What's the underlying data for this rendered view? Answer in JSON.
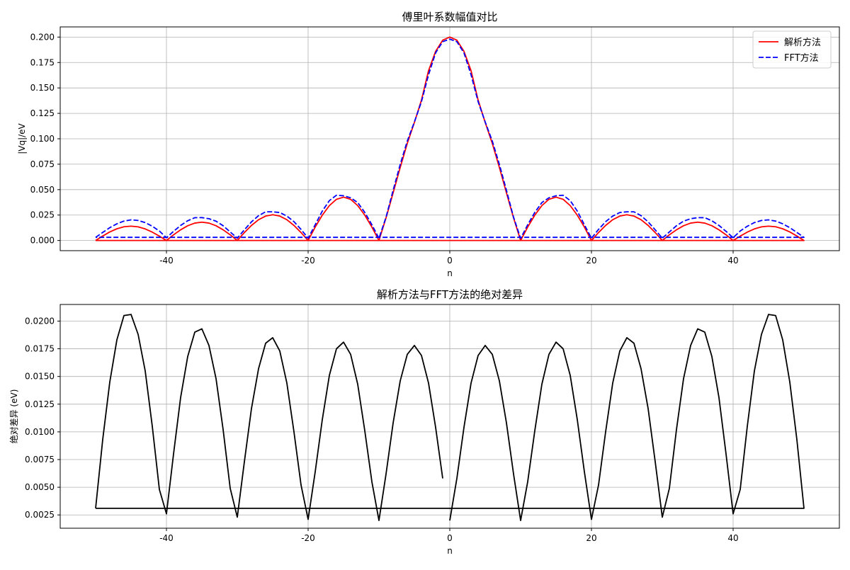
{
  "chart_data": [
    {
      "type": "line",
      "title": "傅里叶系数幅值对比",
      "xlabel": "n",
      "ylabel": "|Vq|/eV",
      "xlim": [
        -55,
        55
      ],
      "ylim": [
        -0.01,
        0.21
      ],
      "xticks": [
        -40,
        -20,
        0,
        20,
        40
      ],
      "yticks": [
        0.0,
        0.025,
        0.05,
        0.075,
        0.1,
        0.125,
        0.15,
        0.175,
        0.2
      ],
      "ytick_labels": [
        "0.000",
        "0.025",
        "0.050",
        "0.075",
        "0.100",
        "0.125",
        "0.150",
        "0.175",
        "0.200"
      ],
      "grid": true,
      "legend_position": "top-right",
      "series": [
        {
          "name": "解析方法",
          "color": "#ff0000",
          "style": "solid",
          "x": [
            -50,
            -49,
            -48,
            -47,
            -46,
            -45,
            -44,
            -43,
            -42,
            -41,
            -40,
            -39,
            -38,
            -37,
            -36,
            -35,
            -34,
            -33,
            -32,
            -31,
            -30,
            -29,
            -28,
            -27,
            -26,
            -25,
            -24,
            -23,
            -22,
            -21,
            -20,
            -19,
            -18,
            -17,
            -16,
            -15,
            -14,
            -13,
            -12,
            -11,
            -10,
            -9,
            -8,
            -7,
            -6,
            -5,
            -4,
            -3,
            -2,
            -1,
            0,
            1,
            2,
            3,
            4,
            5,
            6,
            7,
            8,
            9,
            10,
            11,
            12,
            13,
            14,
            15,
            16,
            17,
            18,
            19,
            20,
            21,
            22,
            23,
            24,
            25,
            26,
            27,
            28,
            29,
            30,
            31,
            32,
            33,
            34,
            35,
            36,
            37,
            38,
            39,
            40,
            41,
            42,
            43,
            44,
            45,
            46,
            47,
            48,
            49,
            50,
            50,
            -50
          ],
          "y": [
            0.0,
            0.0044,
            0.0084,
            0.0115,
            0.0135,
            0.0141,
            0.0134,
            0.0114,
            0.0082,
            0.0043,
            0.0,
            0.0056,
            0.0105,
            0.0145,
            0.0171,
            0.018,
            0.0171,
            0.0145,
            0.0105,
            0.0056,
            0.0,
            0.0078,
            0.0148,
            0.0204,
            0.024,
            0.0253,
            0.024,
            0.0204,
            0.0148,
            0.0078,
            0.0,
            0.0132,
            0.0249,
            0.0343,
            0.0405,
            0.0426,
            0.0405,
            0.0343,
            0.0249,
            0.0132,
            0.0,
            0.0223,
            0.0468,
            0.0718,
            0.0955,
            0.116,
            0.138,
            0.167,
            0.186,
            0.197,
            0.2,
            0.197,
            0.186,
            0.167,
            0.138,
            0.116,
            0.0955,
            0.0718,
            0.0468,
            0.0223,
            0.0,
            0.0132,
            0.0249,
            0.0343,
            0.0405,
            0.0426,
            0.0405,
            0.0343,
            0.0249,
            0.0132,
            0.0,
            0.0078,
            0.0148,
            0.0204,
            0.024,
            0.0253,
            0.024,
            0.0204,
            0.0148,
            0.0078,
            0.0,
            0.0056,
            0.0105,
            0.0145,
            0.0171,
            0.018,
            0.0171,
            0.0145,
            0.0105,
            0.0056,
            0.0,
            0.0043,
            0.0082,
            0.0114,
            0.0134,
            0.0141,
            0.0135,
            0.0115,
            0.0084,
            0.0044,
            0.0,
            0.0,
            0.0
          ]
        },
        {
          "name": "FFT方法",
          "color": "#0000ff",
          "style": "dashed",
          "x": [
            -50,
            -49,
            -48,
            -47,
            -46,
            -45,
            -44,
            -43,
            -42,
            -41,
            -40,
            -39,
            -38,
            -37,
            -36,
            -35,
            -34,
            -33,
            -32,
            -31,
            -30,
            -29,
            -28,
            -27,
            -26,
            -25,
            -24,
            -23,
            -22,
            -21,
            -20,
            -19,
            -18,
            -17,
            -16,
            -15,
            -14,
            -13,
            -12,
            -11,
            -10,
            -9,
            -8,
            -7,
            -6,
            -5,
            -4,
            -3,
            -2,
            -1,
            0,
            1,
            2,
            3,
            4,
            5,
            6,
            7,
            8,
            9,
            10,
            11,
            12,
            13,
            14,
            15,
            16,
            17,
            18,
            19,
            20,
            21,
            22,
            23,
            24,
            25,
            26,
            27,
            28,
            29,
            30,
            31,
            32,
            33,
            34,
            35,
            36,
            37,
            38,
            39,
            40,
            41,
            42,
            43,
            44,
            45,
            46,
            47,
            48,
            49,
            50,
            50,
            -50
          ],
          "y": [
            0.0031,
            0.0079,
            0.0126,
            0.0164,
            0.0191,
            0.0203,
            0.0197,
            0.0176,
            0.014,
            0.0093,
            0.0027,
            0.009,
            0.0148,
            0.0194,
            0.0224,
            0.0225,
            0.0214,
            0.019,
            0.0145,
            0.0084,
            0.0023,
            0.0105,
            0.0183,
            0.0244,
            0.0282,
            0.0282,
            0.0275,
            0.024,
            0.0185,
            0.0109,
            0.0022,
            0.0155,
            0.0289,
            0.0392,
            0.0445,
            0.044,
            0.042,
            0.0373,
            0.0276,
            0.0155,
            0.0021,
            0.0229,
            0.0493,
            0.0748,
            0.0978,
            0.1165,
            0.1365,
            0.163,
            0.1845,
            0.1955,
            0.198,
            0.1955,
            0.1845,
            0.163,
            0.1365,
            0.1165,
            0.0978,
            0.0748,
            0.0493,
            0.0229,
            0.0021,
            0.0155,
            0.0276,
            0.0373,
            0.042,
            0.044,
            0.0445,
            0.0392,
            0.0289,
            0.0155,
            0.0022,
            0.0109,
            0.0185,
            0.024,
            0.0275,
            0.0282,
            0.0282,
            0.0244,
            0.0183,
            0.0105,
            0.0023,
            0.0084,
            0.0145,
            0.019,
            0.0214,
            0.0225,
            0.0224,
            0.0194,
            0.0148,
            0.009,
            0.0027,
            0.0093,
            0.014,
            0.0176,
            0.0197,
            0.0203,
            0.0191,
            0.0164,
            0.0126,
            0.0079,
            0.0031,
            0.0031,
            0.0031
          ]
        }
      ]
    },
    {
      "type": "line",
      "title": "解析方法与FFT方法的绝对差异",
      "xlabel": "n",
      "ylabel": "绝对差异 (eV)",
      "xlim": [
        -55,
        55
      ],
      "ylim": [
        0.0013,
        0.0215
      ],
      "xticks": [
        -40,
        -20,
        0,
        20,
        40
      ],
      "yticks": [
        0.0025,
        0.005,
        0.0075,
        0.01,
        0.0125,
        0.015,
        0.0175,
        0.02
      ],
      "ytick_labels": [
        "0.0025",
        "0.0050",
        "0.0075",
        "0.0100",
        "0.0125",
        "0.0150",
        "0.0175",
        "0.0200"
      ],
      "grid": true,
      "series": [
        {
          "color": "#000000",
          "style": "solid",
          "x": [
            -50,
            -49,
            -48,
            -47,
            -46,
            -45,
            -44,
            -43,
            -42,
            -41,
            -40,
            -39,
            -38,
            -37,
            -36,
            -35,
            -34,
            -33,
            -32,
            -31,
            -30,
            -29,
            -28,
            -27,
            -26,
            -25,
            -24,
            -23,
            -22,
            -21,
            -20,
            -19,
            -18,
            -17,
            -16,
            -15,
            -14,
            -13,
            -12,
            -11,
            -10,
            -9,
            -8,
            -7,
            -6,
            -5,
            -4,
            -3,
            -2,
            -1
          ],
          "y": [
            0.0031,
            0.0093,
            0.0145,
            0.0183,
            0.0205,
            0.0206,
            0.0188,
            0.0155,
            0.0105,
            0.0048,
            0.0026,
            0.008,
            0.0131,
            0.0168,
            0.019,
            0.0193,
            0.0178,
            0.0148,
            0.0102,
            0.0049,
            0.0023,
            0.0073,
            0.0121,
            0.0157,
            0.018,
            0.0185,
            0.0173,
            0.0144,
            0.01,
            0.0052,
            0.0021,
            0.0064,
            0.0111,
            0.0151,
            0.0175,
            0.0181,
            0.017,
            0.0143,
            0.0101,
            0.0055,
            0.002,
            0.0062,
            0.0108,
            0.0146,
            0.017,
            0.0178,
            0.0169,
            0.0144,
            0.0104,
            0.0058
          ]
        },
        {
          "color": "#000000",
          "style": "solid",
          "x": [
            0,
            1,
            2,
            3,
            4,
            5,
            6,
            7,
            8,
            9,
            10,
            11,
            12,
            13,
            14,
            15,
            16,
            17,
            18,
            19,
            20,
            21,
            22,
            23,
            24,
            25,
            26,
            27,
            28,
            29,
            30,
            31,
            32,
            33,
            34,
            35,
            36,
            37,
            38,
            39,
            40,
            41,
            42,
            43,
            44,
            45,
            46,
            47,
            48,
            49,
            50,
            50,
            -50
          ],
          "y": [
            0.002,
            0.0058,
            0.0104,
            0.0144,
            0.0169,
            0.0178,
            0.017,
            0.0146,
            0.0108,
            0.0062,
            0.002,
            0.0055,
            0.0101,
            0.0143,
            0.017,
            0.0181,
            0.0175,
            0.0151,
            0.0111,
            0.0064,
            0.0021,
            0.0052,
            0.01,
            0.0144,
            0.0173,
            0.0185,
            0.018,
            0.0157,
            0.0121,
            0.0073,
            0.0023,
            0.0049,
            0.0102,
            0.0148,
            0.0178,
            0.0193,
            0.019,
            0.0168,
            0.0131,
            0.008,
            0.0026,
            0.0048,
            0.0105,
            0.0155,
            0.0188,
            0.0206,
            0.0205,
            0.0183,
            0.0145,
            0.0093,
            0.0031,
            0.0031,
            0.0031
          ]
        }
      ]
    }
  ]
}
